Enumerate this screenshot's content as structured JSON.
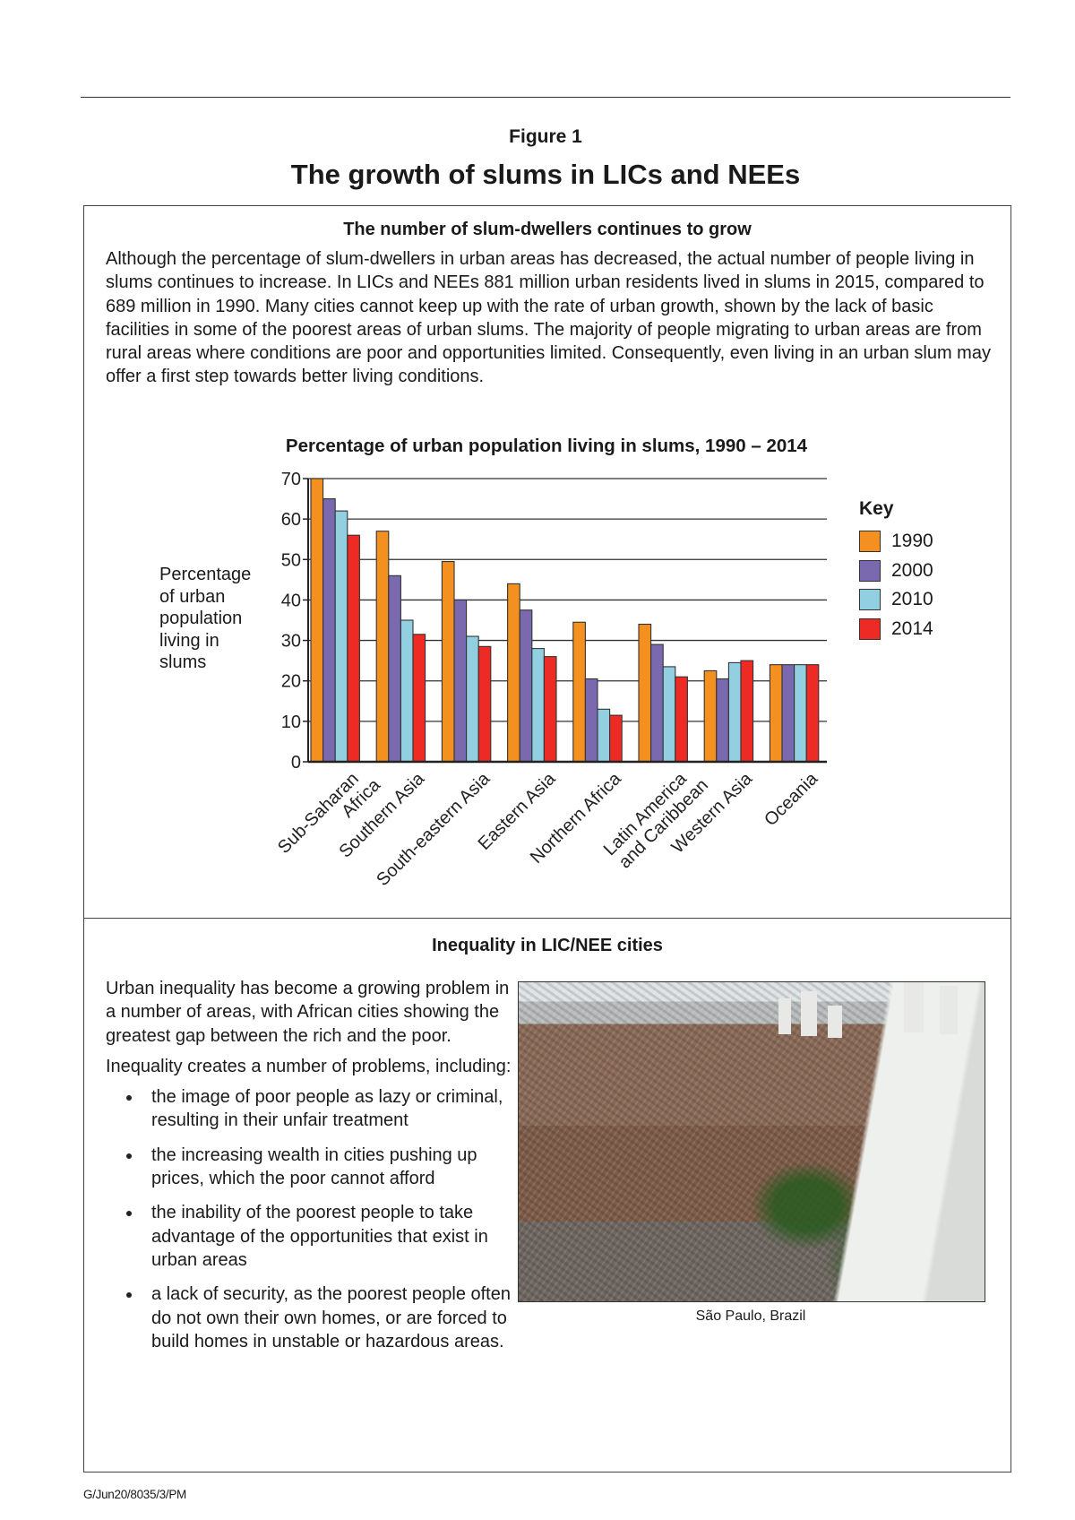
{
  "header": {
    "figure_label": "Figure 1",
    "title": "The growth of slums in LICs and NEEs"
  },
  "section1": {
    "heading": "The number of slum-dwellers continues to grow",
    "body": "Although the percentage of slum-dwellers in urban areas has decreased, the actual number of people living in slums continues to increase. In LICs and NEEs 881 million urban residents lived in slums in 2015, compared to 689 million in 1990. Many cities cannot keep up with the rate of urban growth, shown by the lack of basic facilities in some of the poorest areas of urban slums. The majority of people migrating to urban areas are from rural areas where conditions are poor and opportunities limited. Consequently, even living in an urban slum may offer a first step towards better living conditions."
  },
  "chart_data": {
    "type": "bar",
    "title": "Percentage of urban population living in slums, 1990 – 2014",
    "ylabel": "Percentage of urban population living in slums",
    "xlabel": "",
    "ylim": [
      0,
      70
    ],
    "yticks": [
      "0",
      "10",
      "20",
      "30",
      "40",
      "50",
      "60",
      "70"
    ],
    "grid": true,
    "legend_title": "Key",
    "legend_position": "right",
    "categories": [
      "Sub-Saharan Africa",
      "Southern Asia",
      "South-eastern Asia",
      "Eastern Asia",
      "Northern Africa",
      "Latin America and Caribbean",
      "Western Asia",
      "Oceania"
    ],
    "series": [
      {
        "name": "1990",
        "color": "#f39020",
        "values": [
          70,
          57,
          49.5,
          44,
          34.5,
          34,
          22.5,
          24
        ]
      },
      {
        "name": "2000",
        "color": "#7b69b0",
        "values": [
          65,
          46,
          40,
          37.5,
          20.5,
          29,
          20.5,
          24
        ]
      },
      {
        "name": "2010",
        "color": "#92cfe0",
        "values": [
          62,
          35,
          31,
          28,
          13,
          23.5,
          24.5,
          24
        ]
      },
      {
        "name": "2014",
        "color": "#ee2a24",
        "values": [
          56,
          31.5,
          28.5,
          26,
          11.5,
          21,
          25,
          24
        ]
      }
    ]
  },
  "section2": {
    "heading": "Inequality in LIC/NEE cities",
    "para1": "Urban inequality has become a growing problem in a number of areas, with African cities showing the greatest gap between the rich and the poor.",
    "para2": "Inequality creates a number of problems, including:",
    "bullets": [
      "the image of poor people as lazy or criminal, resulting in their unfair treatment",
      "the increasing wealth in cities pushing up prices, which the poor cannot afford",
      "the inability of the poorest people to take advantage of the opportunities that exist in urban areas",
      "a lack of security, as the poorest people often do not own their own homes, or are forced to build homes in unstable or hazardous areas."
    ],
    "photo_caption": "São Paulo, Brazil"
  },
  "footer": {
    "code": "G/Jun20/8035/3/PM"
  }
}
